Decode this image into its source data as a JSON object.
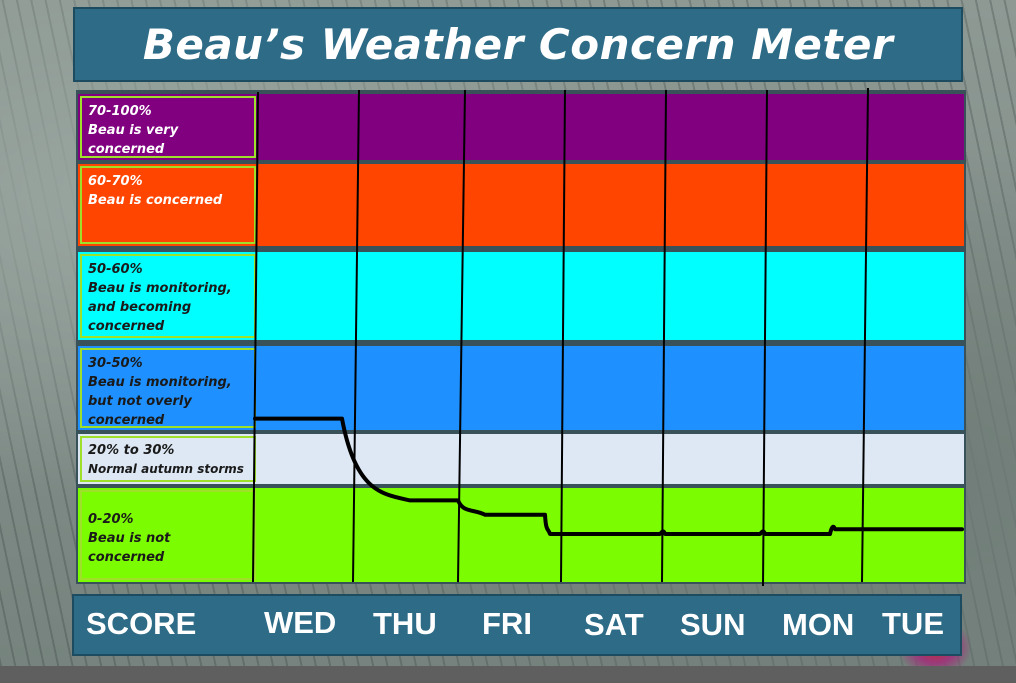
{
  "title": "Beau’s Weather Concern Meter",
  "colors": {
    "title_bg": "#2d6b86",
    "band_very_concerned": "#800080",
    "band_concerned": "#ff4500",
    "band_monitoring_becoming": "#00ffff",
    "band_monitoring": "#1e90ff",
    "band_normal": "#dde8f4",
    "band_not_concerned": "#7cfc00",
    "line": "#000000"
  },
  "bands": [
    {
      "range": "70-100%",
      "desc": "Beau is very concerned",
      "color": "#800080",
      "text_color": "#ffffff"
    },
    {
      "range": "60-70%",
      "desc": "Beau is concerned",
      "color": "#ff4500",
      "text_color": "#ffffff"
    },
    {
      "range": "50-60%",
      "desc": "Beau is monitoring, and becoming concerned",
      "color": "#00ffff",
      "text_color": "#1a1a1a"
    },
    {
      "range": "30-50%",
      "desc": "Beau is monitoring, but  not overly  concerned",
      "color": "#1e90ff",
      "text_color": "#1a1a1a"
    },
    {
      "range": "20% to 30%",
      "desc": "Normal autumn storms",
      "color": "#dde8f4",
      "text_color": "#1a1a1a"
    },
    {
      "range": "0-20%",
      "desc": "Beau is not concerned",
      "color": "#7cfc00",
      "text_color": "#1a1a1a"
    }
  ],
  "axis": {
    "score_label": "SCORE",
    "days": [
      "WED",
      "THU",
      "FRI",
      "SAT",
      "SUN",
      "MON",
      "TUE"
    ]
  },
  "chart_data": {
    "type": "line",
    "title": "Beau’s Weather Concern Meter",
    "xlabel": "",
    "ylabel": "SCORE",
    "categories": [
      "WED",
      "THU",
      "FRI",
      "SAT",
      "SUN",
      "MON",
      "TUE"
    ],
    "x": [
      "WED",
      "THU",
      "FRI",
      "SAT",
      "SUN",
      "MON",
      "TUE"
    ],
    "series": [
      {
        "values": [
          33,
          17,
          14,
          10,
          10,
          10,
          11
        ]
      }
    ],
    "value_unit": "%",
    "bands": [
      {
        "from": 70,
        "to": 100,
        "label": "70-100%"
      },
      {
        "from": 60,
        "to": 70,
        "label": "60-70%"
      },
      {
        "from": 50,
        "to": 60,
        "label": "50-60%"
      },
      {
        "from": 30,
        "to": 50,
        "label": "30-50%"
      },
      {
        "from": 20,
        "to": 30,
        "label": "20% to 30%"
      },
      {
        "from": 0,
        "to": 20,
        "label": "0-20%"
      }
    ],
    "ylim": [
      0,
      100
    ],
    "grid": true
  }
}
